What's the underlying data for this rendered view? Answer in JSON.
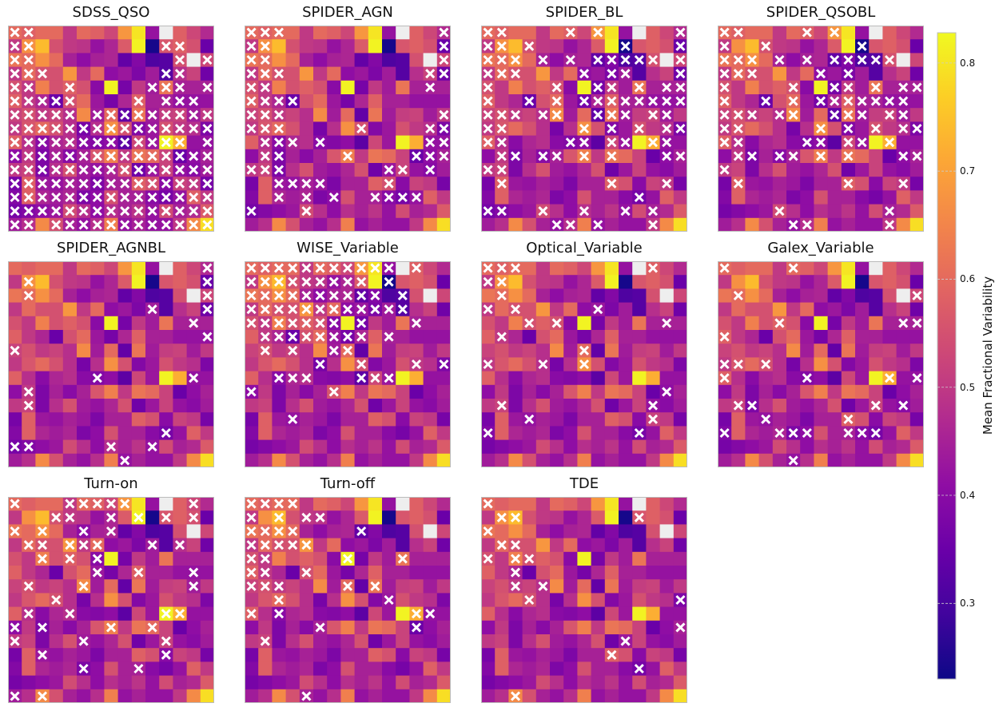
{
  "chart_data": {
    "type": "heatmap",
    "colormap": "plasma",
    "grid_values": [
      [
        0.6,
        0.58,
        0.6,
        0.6,
        0.5,
        0.6,
        0.58,
        0.53,
        0.68,
        0.8,
        0.42,
        null,
        0.58,
        0.53,
        0.47
      ],
      [
        0.5,
        0.67,
        0.74,
        0.55,
        0.5,
        0.49,
        0.42,
        0.46,
        0.57,
        0.82,
        0.24,
        0.56,
        0.58,
        0.55,
        0.35
      ],
      [
        0.62,
        0.6,
        0.67,
        0.6,
        0.45,
        0.41,
        0.45,
        0.46,
        0.34,
        0.39,
        0.31,
        0.32,
        0.55,
        null,
        0.53
      ],
      [
        0.5,
        0.6,
        0.55,
        0.55,
        0.68,
        0.5,
        0.6,
        0.41,
        0.43,
        0.38,
        0.44,
        0.32,
        0.48,
        0.52,
        0.36
      ],
      [
        0.55,
        0.5,
        0.64,
        0.55,
        0.58,
        0.55,
        0.4,
        0.82,
        0.37,
        0.5,
        0.44,
        0.62,
        0.45,
        0.45,
        0.45
      ],
      [
        0.58,
        0.5,
        0.46,
        0.35,
        0.55,
        0.6,
        0.43,
        0.37,
        0.46,
        0.58,
        0.45,
        0.45,
        0.42,
        0.42,
        0.42
      ],
      [
        0.52,
        0.55,
        0.5,
        0.52,
        0.48,
        0.66,
        0.44,
        0.6,
        0.34,
        0.62,
        0.44,
        0.51,
        0.52,
        0.44,
        0.5
      ],
      [
        0.5,
        0.56,
        0.6,
        0.55,
        0.48,
        0.37,
        0.48,
        0.67,
        0.55,
        0.39,
        0.43,
        0.55,
        0.5,
        0.48,
        0.38
      ],
      [
        0.58,
        0.48,
        0.4,
        0.46,
        0.48,
        0.4,
        0.39,
        0.41,
        0.33,
        0.53,
        0.43,
        0.82,
        0.72,
        0.42,
        0.42
      ],
      [
        0.41,
        0.5,
        0.38,
        0.45,
        0.4,
        0.45,
        0.56,
        0.64,
        0.5,
        0.62,
        0.6,
        0.52,
        0.35,
        0.41,
        0.45
      ],
      [
        0.5,
        0.52,
        0.38,
        0.48,
        0.55,
        0.44,
        0.42,
        0.46,
        0.55,
        0.36,
        0.43,
        0.52,
        0.42,
        0.4,
        0.44
      ],
      [
        0.37,
        0.58,
        0.43,
        0.42,
        0.45,
        0.43,
        0.38,
        0.45,
        0.45,
        0.58,
        0.55,
        0.4,
        0.52,
        0.5,
        0.37
      ],
      [
        0.39,
        0.58,
        0.46,
        0.44,
        0.46,
        0.38,
        0.41,
        0.55,
        0.45,
        0.45,
        0.4,
        0.37,
        0.42,
        0.58,
        0.5
      ],
      [
        0.37,
        0.39,
        0.41,
        0.43,
        0.54,
        0.48,
        0.41,
        0.48,
        0.45,
        0.49,
        0.42,
        0.54,
        0.45,
        0.47,
        0.57
      ],
      [
        0.44,
        0.48,
        0.66,
        0.55,
        0.45,
        0.42,
        0.48,
        0.64,
        0.42,
        0.45,
        0.42,
        0.42,
        0.5,
        0.66,
        0.79
      ]
    ],
    "empty_cell_color": "#eeeeee",
    "marker_color": "#ffffff",
    "marker": "x",
    "panels": [
      {
        "title": "SDSS_QSO",
        "markers": [
          "xx.............",
          "xx.........xx..",
          "xx..........x.x",
          "xxx........xx..",
          "xx..x.....xxx.x",
          "xxxxx....x.xxx.",
          "xxxxx.xxxxxxxxx",
          "xxxxxxxxxxxxxxx",
          "xxxxxxxxxxxxx.x",
          "xxxxxxxxxxxxxxx",
          "xxxxxxxxxxxxxxx",
          "xxxxxxxxxxxxxxx",
          "xxxxxxxxxxxxxxx",
          "xxxxxxxxxxxxxxx",
          "xx.xxxxxxxxxxxx"
        ]
      },
      {
        "title": "SPIDER_AGN",
        "markers": [
          "xxx...........x",
          "xx............x",
          "xx............x",
          "xxx..........xx",
          "xx...........x.",
          "xxxx...........",
          "xxx...........x",
          "xxx.....x....xx",
          ".xxx.x.......xx",
          ".xx....x....xxx",
          "xxx.......xx.x.",
          "..xxxx....x....",
          "..x.x.x..xxxx..",
          "x...x..........",
          "..............."
        ]
      },
      {
        "title": "SPIDER_BL",
        "markers": [
          "xx....x.x.....x",
          "xx.x......x...x",
          "xxx.x.x.xxxxx.x",
          "xxx....x.xx...x",
          "x....x..xx.x.xx",
          "x..x.x.xxxxxxxx",
          "xxx.xx..xxx.xx.",
          "xx.....x.x.x.xx",
          "xx....xx.xx.xx.",
          ".xx.xx.x.x...xx",
          "xx.............",
          ".x.......x...x.",
          "...........x...",
          "xx..x..x..x.x..",
          ".....xx.x...x.."
        ]
      },
      {
        "title": "SPIDER_QSOBL",
        "markers": [
          "xx....x.x......",
          "x..x......x....",
          "xxx.x.x.xxxxx..",
          "xxx....x.x.....",
          "x....x..xx.x.xx",
          "x..x.x.xxxxxxx.",
          "xxx.xx..xxx.xx.",
          "xx.....x.x.x.xx",
          "xx....xx.xx.x..",
          ".xx.xx.x.x...xx",
          "x..............",
          ".x.......x...x.",
          "...............",
          "....x.......x..",
          ".....xx.....x.."
        ]
      },
      {
        "title": "SPIDER_AGNBL",
        "markers": [
          "..............x",
          ".x............x",
          ".x............x",
          "..........x...x",
          ".............x.",
          "..............x",
          "x..............",
          "...............",
          "......x......x.",
          ".x.............",
          ".x.............",
          "...............",
          "...........x...",
          "xx.....x..x....",
          "........x......"
        ]
      },
      {
        "title": "WISE_Variable",
        "markers": [
          "xxxxxxxxxxx.x..",
          "xxxxxxxxx.x....",
          "xxxxxxxxxx.x...",
          "xxxxxxxxxxxx...",
          "xxxxxxx.x...x..",
          ".xxxxxxxx.x....",
          ".x.x..xx.......",
          ".....x..x...x.x",
          "..xxx...xxx....",
          "x.....x........",
          "...............",
          "...x...........",
          "...............",
          "...............",
          "..............."
        ]
      },
      {
        "title": "Optical_Variable",
        "markers": [
          "xxx.........x..",
          "xx.............",
          ".x.............",
          "x.x.....x......",
          "...x.x.......x.",
          ".x.............",
          ".......x.......",
          "x...x..x.......",
          "...............",
          ".............x.",
          ".x..........x..",
          "...x........x..",
          "x..........x...",
          "...............",
          "..............."
        ]
      },
      {
        "title": "Galex_Variable",
        "markers": [
          "x....x.........",
          "...............",
          ".x............x",
          "...............",
          "....x........xx",
          "x..............",
          "...............",
          "xx.x...........",
          "x.....x.....x.x",
          "...............",
          ".xx........x.x.",
          "...x.....x.....",
          "x...xxx..xxx...",
          "...............",
          ".....x........."
        ]
      },
      {
        "title": "Turn-on",
        "markers": [
          "x...xxxxx....x.",
          "...xx..x.x.x.x.",
          "x.x..x.x.......",
          ".xx.xxx...x.x..",
          "..x.x.x........",
          "......x..x...x.",
          ".x...x.......x.",
          "...x...........",
          ".x..x......xx..",
          "x.x....x..x....",
          "x....x.....x...",
          "..x........x...",
          ".....x...x.....",
          "...............",
          "x.x............"
        ]
      },
      {
        "title": "Turn-off",
        "markers": [
          "xxxx...........",
          "x.x.xx.........",
          "xxxx....x......",
          "xxxxx..........",
          "xx.....x...x...",
          "xx..x..........",
          "xxx....x.x.....",
          "..x.......x....",
          "x.x.........xx.",
          ".....x......x..",
          ".x.............",
          "...............",
          "...............",
          "...............",
          "....x.........."
        ]
      },
      {
        "title": "TDE",
        "markers": [
          "x..............",
          ".xx........x...",
          "x..............",
          ".xx............",
          "x.xx...........",
          "..x............",
          "..x.x..........",
          "...x..........x",
          "...............",
          "..............x",
          "..........x....",
          ".........x.....",
          "...........x...",
          "...............",
          "..x............"
        ]
      }
    ],
    "colorbar": {
      "label": "Mean Fractional Variability",
      "range": [
        0.23,
        0.828
      ],
      "ticks": [
        "0.3",
        "0.4",
        "0.5",
        "0.6",
        "0.7",
        "0.8"
      ]
    }
  }
}
